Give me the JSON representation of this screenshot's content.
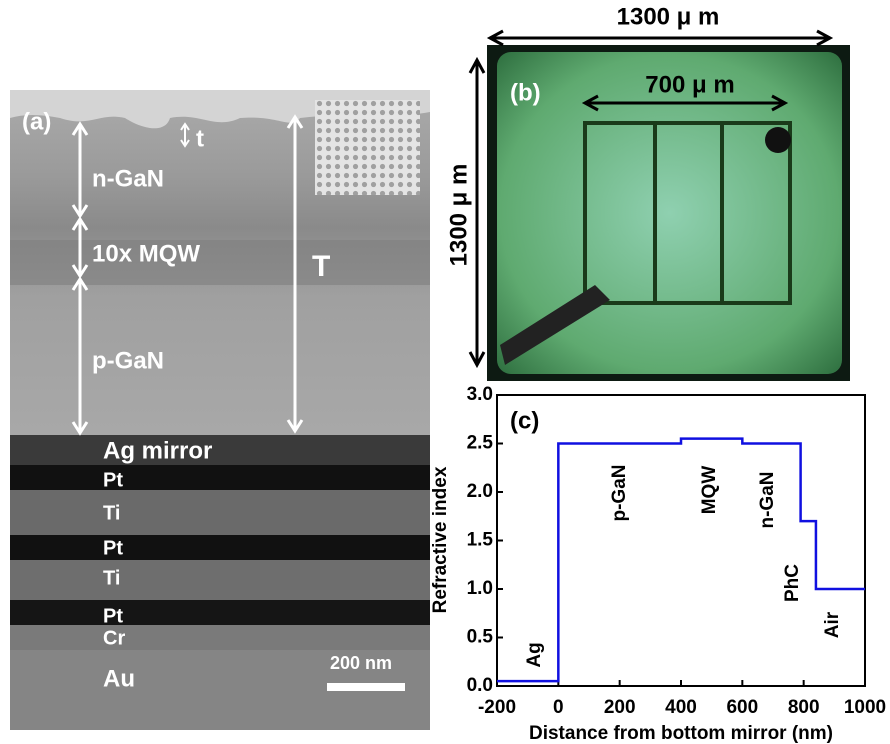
{
  "panels": {
    "a": {
      "label": "(a)",
      "t": "t",
      "n_gan": "n-GaN",
      "mqw": "10x MQW",
      "p_gan": "p-GaN",
      "T": "T",
      "layers": [
        "Ag mirror",
        "Pt",
        "Ti",
        "Pt",
        "Ti",
        "Pt",
        "Cr",
        "Au"
      ],
      "scale": "200 nm"
    },
    "b": {
      "label": "(b)",
      "width": "1300 μ m",
      "height": "1300 μ m",
      "inner": "700 μ m"
    }
  },
  "chart_data": {
    "type": "line",
    "title": "(c)",
    "xlabel": "Distance from bottom mirror (nm)",
    "ylabel": "Refractive index",
    "x": [
      -200,
      0,
      0,
      400,
      400,
      600,
      600,
      790,
      790,
      840,
      840,
      1000
    ],
    "values": [
      0.05,
      0.05,
      2.5,
      2.5,
      2.55,
      2.55,
      2.5,
      2.5,
      1.7,
      1.7,
      1.0,
      1.0
    ],
    "color": "#1010e0",
    "annotations": [
      "Ag",
      "p-GaN",
      "MQW",
      "n-GaN",
      "PhC",
      "Air"
    ],
    "xlim": [
      -200,
      1000
    ],
    "xticks": [
      -200,
      0,
      200,
      400,
      600,
      800,
      1000
    ],
    "ylim": [
      0,
      3
    ],
    "yticks": [
      {
        "value": 0,
        "label": "0.0"
      },
      0.5,
      {
        "value": 1,
        "label": "1.0"
      },
      1.5,
      {
        "value": 2,
        "label": "2.0"
      },
      2.5,
      {
        "value": 3,
        "label": "3.0"
      }
    ]
  }
}
